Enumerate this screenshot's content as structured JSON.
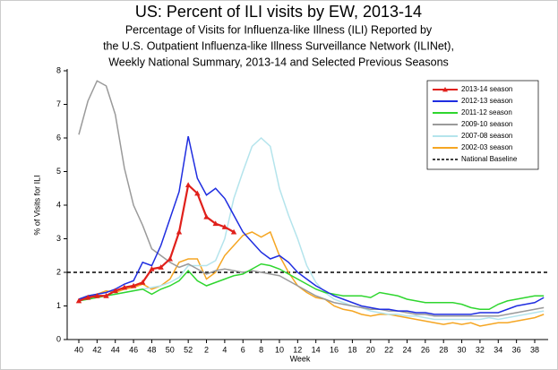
{
  "chart_data": {
    "type": "line",
    "title": "US: Percent of ILI visits by EW, 2013-14",
    "subtitle": [
      "Percentage of Visits for Influenza-like Illness (ILI) Reported by",
      "the U.S. Outpatient Influenza-like Illness Surveillance Network (ILINet),",
      "Weekly National Summary, 2013-14 and Selected Previous Seasons"
    ],
    "x_label": "Week",
    "y_label": "% of Visits for ILI",
    "categories": [
      "40",
      null,
      "42",
      null,
      "44",
      null,
      "46",
      null,
      "48",
      null,
      "50",
      null,
      "52",
      null,
      "2",
      null,
      "4",
      null,
      "6",
      null,
      "8",
      null,
      "10",
      null,
      "12",
      null,
      "14",
      null,
      "16",
      null,
      "18",
      null,
      "20",
      null,
      "22",
      null,
      "24",
      null,
      "26",
      null,
      "28",
      null,
      "30",
      null,
      "32",
      null,
      "34",
      null,
      "36",
      null,
      "38",
      null
    ],
    "ylim": [
      0,
      8
    ],
    "yticks": [
      0,
      1,
      2,
      3,
      4,
      5,
      6,
      7,
      8
    ],
    "legend": "upper right",
    "baseline": {
      "name": "National Baseline",
      "value": 2,
      "color": "#000000"
    },
    "series": [
      {
        "name": "2013-14 season",
        "color": "#e0201b",
        "marker": "triangle",
        "values": [
          1.15,
          1.25,
          1.3,
          1.3,
          1.45,
          1.55,
          1.6,
          1.7,
          2.1,
          2.15,
          2.4,
          3.2,
          4.6,
          4.35,
          3.65,
          3.45,
          3.35,
          3.2,
          null,
          null,
          null,
          null,
          null,
          null,
          null,
          null,
          null,
          null,
          null,
          null,
          null,
          null,
          null,
          null,
          null,
          null,
          null,
          null,
          null,
          null,
          null,
          null,
          null,
          null,
          null,
          null,
          null,
          null,
          null,
          null,
          null,
          null
        ]
      },
      {
        "name": "2012-13 season",
        "color": "#1f2de0",
        "values": [
          1.2,
          1.3,
          1.35,
          1.4,
          1.5,
          1.65,
          1.75,
          2.3,
          2.2,
          2.8,
          3.6,
          4.4,
          6.05,
          4.8,
          4.3,
          4.5,
          4.2,
          3.7,
          3.2,
          2.9,
          2.6,
          2.4,
          2.5,
          2.3,
          2.0,
          1.8,
          1.6,
          1.45,
          1.3,
          1.2,
          1.1,
          1.0,
          0.95,
          0.9,
          0.9,
          0.85,
          0.85,
          0.8,
          0.8,
          0.75,
          0.75,
          0.75,
          0.75,
          0.75,
          0.8,
          0.8,
          0.8,
          0.9,
          1.0,
          1.05,
          1.1,
          1.25
        ]
      },
      {
        "name": "2011-12 season",
        "color": "#2fd62f",
        "values": [
          1.15,
          1.2,
          1.25,
          1.3,
          1.35,
          1.4,
          1.45,
          1.5,
          1.35,
          1.5,
          1.6,
          1.75,
          2.05,
          1.75,
          1.6,
          1.7,
          1.8,
          1.9,
          1.95,
          2.1,
          2.25,
          2.2,
          2.1,
          1.95,
          1.8,
          1.65,
          1.5,
          1.4,
          1.35,
          1.3,
          1.3,
          1.3,
          1.25,
          1.4,
          1.35,
          1.3,
          1.2,
          1.15,
          1.1,
          1.1,
          1.1,
          1.1,
          1.05,
          0.95,
          0.9,
          0.9,
          1.05,
          1.15,
          1.2,
          1.25,
          1.3,
          1.3
        ]
      },
      {
        "name": "2009-10 season",
        "color": "#9a9a9a",
        "values": [
          6.1,
          7.1,
          7.7,
          7.55,
          6.7,
          5.1,
          4.0,
          3.4,
          2.7,
          2.5,
          2.3,
          2.15,
          2.25,
          2.1,
          1.95,
          2.05,
          2.1,
          2.05,
          2.0,
          2.05,
          2.0,
          1.95,
          1.9,
          1.75,
          1.6,
          1.45,
          1.3,
          1.2,
          1.1,
          1.05,
          1.0,
          0.95,
          0.9,
          0.9,
          0.85,
          0.85,
          0.8,
          0.75,
          0.75,
          0.7,
          0.7,
          0.7,
          0.7,
          0.7,
          0.7,
          0.7,
          0.7,
          0.75,
          0.8,
          0.85,
          0.9,
          0.95
        ]
      },
      {
        "name": "2007-08 season",
        "color": "#b4e4ec",
        "values": [
          1.2,
          1.25,
          1.3,
          1.3,
          1.35,
          1.4,
          1.45,
          1.5,
          1.55,
          1.6,
          1.7,
          1.85,
          2.2,
          2.2,
          2.2,
          2.35,
          3.0,
          4.2,
          5.0,
          5.75,
          6.0,
          5.75,
          4.5,
          3.7,
          3.0,
          2.2,
          1.7,
          1.4,
          1.2,
          1.1,
          1.0,
          0.95,
          0.85,
          0.8,
          0.75,
          0.75,
          0.7,
          0.7,
          0.65,
          0.6,
          0.6,
          0.6,
          0.6,
          0.6,
          0.6,
          0.65,
          0.6,
          0.65,
          0.7,
          0.75,
          0.8,
          0.85
        ]
      },
      {
        "name": "2002-03 season",
        "color": "#f5a623",
        "values": [
          1.2,
          1.3,
          1.35,
          1.45,
          1.4,
          1.5,
          1.55,
          1.65,
          1.5,
          1.6,
          1.8,
          2.3,
          2.4,
          2.4,
          1.8,
          2.0,
          2.5,
          2.8,
          3.1,
          3.2,
          3.05,
          3.2,
          2.5,
          2.0,
          1.6,
          1.4,
          1.25,
          1.2,
          1.0,
          0.9,
          0.85,
          0.75,
          0.7,
          0.75,
          0.75,
          0.7,
          0.65,
          0.6,
          0.55,
          0.5,
          0.45,
          0.5,
          0.45,
          0.5,
          0.4,
          0.45,
          0.5,
          0.5,
          0.55,
          0.6,
          0.65,
          0.75
        ]
      }
    ]
  }
}
